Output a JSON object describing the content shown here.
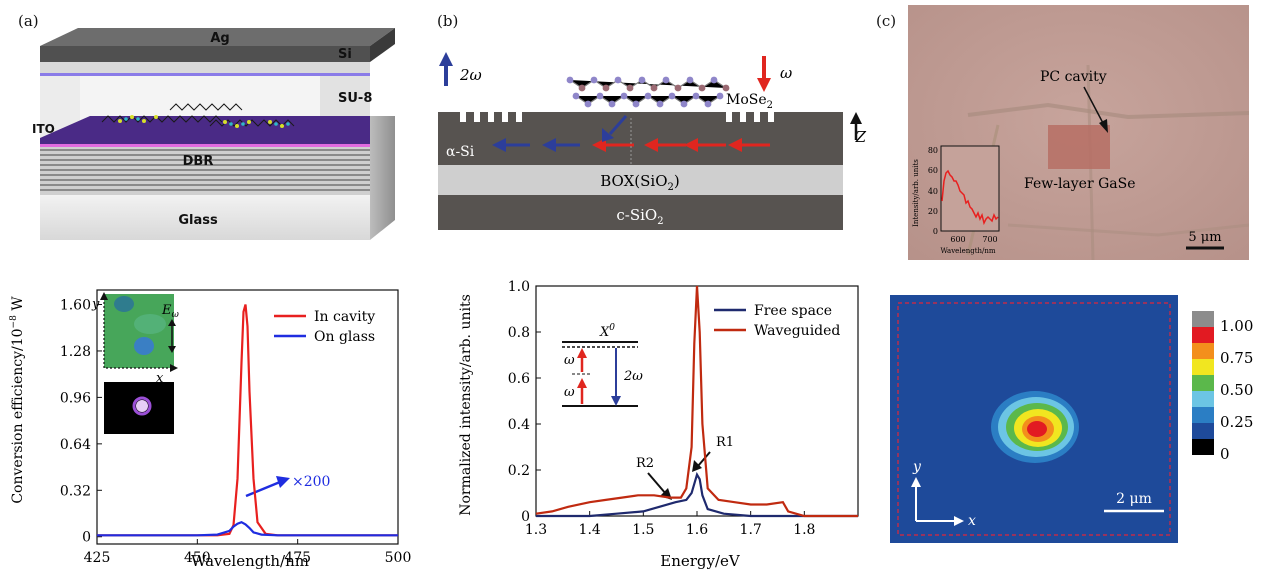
{
  "panels": {
    "a": {
      "label": "(a)",
      "layers": {
        "ag": "Ag",
        "si": "Si",
        "su8": "SU-8",
        "ito": "ITO",
        "dbr": "DBR",
        "glass": "Glass"
      }
    },
    "b": {
      "label": "(b)",
      "two_omega": "2ω",
      "omega": "ω",
      "material": "MoSe",
      "material_sub": "2",
      "z_axis": "Z",
      "layers": {
        "asi": "α-Si",
        "box": "BOX(SiO",
        "box_sub": "2",
        "box_end": ")",
        "csio": "c-SiO",
        "csio_sub": "2"
      }
    },
    "c": {
      "label": "(c)",
      "pc_cavity": "PC cavity",
      "material": "Few-layer GaSe",
      "scale_bar": "5 μm",
      "inset": {
        "ylabel": "Intensity/arb. units",
        "xlabel": "Wavelength/nm",
        "yticks": [
          "0",
          "20",
          "40",
          "60",
          "80"
        ],
        "xticks": [
          "600",
          "700"
        ]
      }
    },
    "d": {
      "ylabel": "Conversion efficiency/10",
      "ylabel_exp": "−8",
      "ylabel_unit": " W",
      "xlabel": "Wavelength/nm",
      "inset_y": "y",
      "inset_x": "x",
      "inset_field": "E",
      "inset_field_sub": "ω",
      "multiplier": "×200"
    },
    "e": {
      "ylabel": "Normalized intensity/arb. units",
      "xlabel": "Energy/eV",
      "exciton": "X",
      "exciton_sup": "0",
      "omega": "ω",
      "two_omega": "2ω",
      "r1": "R1",
      "r2": "R2"
    },
    "f": {
      "colorbar_ticks": [
        "1.00",
        "0.75",
        "0.50",
        "0.25",
        "0"
      ],
      "y_axis": "y",
      "x_axis": "x",
      "scale_bar": "2 μm"
    }
  },
  "chart_data": [
    {
      "type": "line",
      "xlabel": "Wavelength/nm",
      "ylabel": "Conversion efficiency/10−8 W",
      "xlim": [
        425,
        500
      ],
      "ylim": [
        -0.05,
        1.7
      ],
      "xticks": [
        425,
        450,
        475,
        500
      ],
      "yticks": [
        "0",
        "0.32",
        "0.64",
        "0.96",
        "1.28",
        "1.60"
      ],
      "legend_position": "top-right",
      "series": [
        {
          "name": "In cavity",
          "color": "#e8201f",
          "x": [
            425,
            455,
            458,
            459,
            460,
            461,
            461.5,
            462,
            462.5,
            463,
            464,
            465,
            467,
            470,
            500
          ],
          "y": [
            0.01,
            0.01,
            0.02,
            0.08,
            0.4,
            1.2,
            1.55,
            1.6,
            1.45,
            1.0,
            0.4,
            0.1,
            0.02,
            0.01,
            0.01
          ]
        },
        {
          "name": "On glass",
          "color": "#1f2de0",
          "x": [
            425,
            450,
            455,
            458,
            459,
            460,
            461,
            462,
            463,
            464,
            466,
            470,
            500
          ],
          "y": [
            0.01,
            0.01,
            0.015,
            0.04,
            0.07,
            0.09,
            0.1,
            0.085,
            0.06,
            0.03,
            0.015,
            0.01,
            0.01
          ]
        }
      ]
    },
    {
      "type": "line",
      "xlabel": "Energy/eV",
      "ylabel": "Normalized intensity/arb. units",
      "xlim": [
        1.3,
        1.9
      ],
      "ylim": [
        0,
        1.0
      ],
      "xticks": [
        1.3,
        1.4,
        1.5,
        1.6,
        1.7,
        1.8
      ],
      "yticks": [
        "0",
        "0.2",
        "0.4",
        "0.6",
        "0.8",
        "1.0"
      ],
      "legend_position": "top-right",
      "series": [
        {
          "name": "Free space",
          "color": "#1f2a6e",
          "x": [
            1.3,
            1.4,
            1.45,
            1.5,
            1.53,
            1.56,
            1.58,
            1.59,
            1.6,
            1.605,
            1.61,
            1.62,
            1.65,
            1.7,
            1.75,
            1.8,
            1.9
          ],
          "y": [
            0.0,
            0.0,
            0.01,
            0.02,
            0.04,
            0.06,
            0.07,
            0.1,
            0.18,
            0.16,
            0.09,
            0.03,
            0.01,
            0.0,
            0.0,
            0.0,
            0.0
          ]
        },
        {
          "name": "Waveguided",
          "color": "#c02a10",
          "x": [
            1.3,
            1.33,
            1.36,
            1.4,
            1.43,
            1.46,
            1.49,
            1.52,
            1.55,
            1.57,
            1.58,
            1.59,
            1.595,
            1.6,
            1.605,
            1.61,
            1.62,
            1.64,
            1.67,
            1.7,
            1.73,
            1.76,
            1.77,
            1.8,
            1.9
          ],
          "y": [
            0.01,
            0.02,
            0.04,
            0.06,
            0.07,
            0.08,
            0.09,
            0.09,
            0.08,
            0.08,
            0.12,
            0.3,
            0.75,
            1.0,
            0.8,
            0.4,
            0.12,
            0.07,
            0.06,
            0.05,
            0.05,
            0.06,
            0.02,
            0.0,
            0.0
          ]
        }
      ]
    }
  ]
}
